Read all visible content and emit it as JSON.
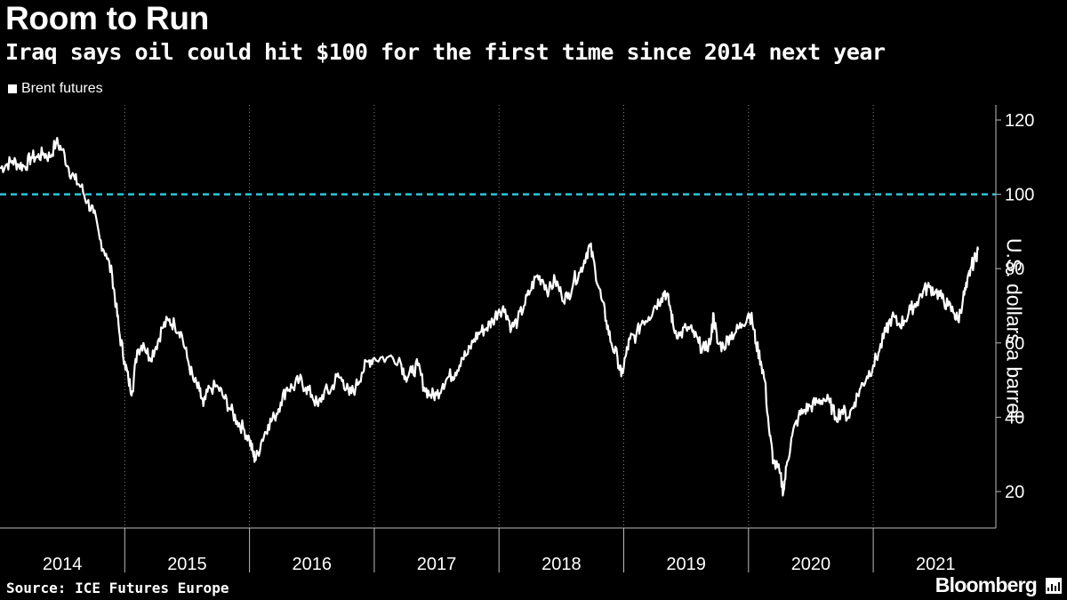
{
  "header": {
    "title": "Room to Run",
    "subtitle": "Iraq says oil could hit $100 for the first time since 2014 next year"
  },
  "legend": {
    "label": "Brent futures",
    "color": "#ffffff"
  },
  "footer": {
    "source": "Source: ICE Futures Europe",
    "brand": "Bloomberg"
  },
  "chart_data": {
    "type": "line",
    "title": "Room to Run",
    "subtitle": "Iraq says oil could hit $100 for the first time since 2014 next year",
    "xlabel": "",
    "ylabel": "U.S. dollars a barrel",
    "ylim": [
      10,
      125
    ],
    "xlim": [
      2014.0,
      2021.95
    ],
    "x_ticks": [
      "2014",
      "2015",
      "2016",
      "2017",
      "2018",
      "2019",
      "2020",
      "2021"
    ],
    "y_ticks": [
      20,
      40,
      60,
      80,
      100,
      120
    ],
    "y_axis_side": "right",
    "grid": "vertical dotted",
    "legend_position": "top-left",
    "reference_line": {
      "value": 100,
      "style": "dashed",
      "color": "#2fc6d8"
    },
    "series": [
      {
        "name": "Brent futures",
        "color": "#ffffff",
        "points": [
          [
            2014.0,
            107
          ],
          [
            2014.05,
            108
          ],
          [
            2014.1,
            109
          ],
          [
            2014.15,
            108
          ],
          [
            2014.2,
            107.5
          ],
          [
            2014.25,
            110
          ],
          [
            2014.3,
            110
          ],
          [
            2014.35,
            111
          ],
          [
            2014.4,
            110
          ],
          [
            2014.45,
            114
          ],
          [
            2014.5,
            112
          ],
          [
            2014.55,
            107
          ],
          [
            2014.6,
            104
          ],
          [
            2014.65,
            102
          ],
          [
            2014.7,
            98
          ],
          [
            2014.75,
            95
          ],
          [
            2014.8,
            88
          ],
          [
            2014.85,
            84
          ],
          [
            2014.9,
            78
          ],
          [
            2014.93,
            70
          ],
          [
            2014.96,
            62
          ],
          [
            2015.0,
            55
          ],
          [
            2015.03,
            50
          ],
          [
            2015.06,
            47
          ],
          [
            2015.1,
            58
          ],
          [
            2015.15,
            60
          ],
          [
            2015.2,
            56
          ],
          [
            2015.25,
            59
          ],
          [
            2015.3,
            64
          ],
          [
            2015.35,
            66
          ],
          [
            2015.4,
            65
          ],
          [
            2015.45,
            63
          ],
          [
            2015.5,
            56
          ],
          [
            2015.55,
            50
          ],
          [
            2015.6,
            47
          ],
          [
            2015.63,
            43
          ],
          [
            2015.68,
            48
          ],
          [
            2015.75,
            48
          ],
          [
            2015.8,
            45
          ],
          [
            2015.85,
            42
          ],
          [
            2015.9,
            39
          ],
          [
            2015.95,
            37
          ],
          [
            2016.0,
            34
          ],
          [
            2016.03,
            30
          ],
          [
            2016.05,
            28.5
          ],
          [
            2016.1,
            34
          ],
          [
            2016.15,
            38
          ],
          [
            2016.2,
            40
          ],
          [
            2016.25,
            44
          ],
          [
            2016.3,
            48
          ],
          [
            2016.35,
            48
          ],
          [
            2016.4,
            50
          ],
          [
            2016.45,
            48
          ],
          [
            2016.5,
            46
          ],
          [
            2016.55,
            43
          ],
          [
            2016.6,
            47
          ],
          [
            2016.65,
            47
          ],
          [
            2016.7,
            51
          ],
          [
            2016.75,
            50
          ],
          [
            2016.8,
            46
          ],
          [
            2016.85,
            48
          ],
          [
            2016.9,
            52
          ],
          [
            2016.95,
            55
          ],
          [
            2017.0,
            56
          ],
          [
            2017.1,
            56
          ],
          [
            2017.2,
            56
          ],
          [
            2017.25,
            51
          ],
          [
            2017.3,
            52
          ],
          [
            2017.35,
            54
          ],
          [
            2017.4,
            48
          ],
          [
            2017.45,
            46
          ],
          [
            2017.5,
            46
          ],
          [
            2017.55,
            49
          ],
          [
            2017.6,
            51
          ],
          [
            2017.65,
            52
          ],
          [
            2017.7,
            56
          ],
          [
            2017.75,
            57
          ],
          [
            2017.8,
            61
          ],
          [
            2017.85,
            63
          ],
          [
            2017.9,
            64
          ],
          [
            2017.95,
            66
          ],
          [
            2018.0,
            69
          ],
          [
            2018.05,
            69
          ],
          [
            2018.1,
            64
          ],
          [
            2018.15,
            66
          ],
          [
            2018.2,
            70
          ],
          [
            2018.25,
            74
          ],
          [
            2018.3,
            78
          ],
          [
            2018.35,
            77
          ],
          [
            2018.4,
            74
          ],
          [
            2018.45,
            77
          ],
          [
            2018.5,
            73
          ],
          [
            2018.55,
            72
          ],
          [
            2018.6,
            77
          ],
          [
            2018.65,
            79
          ],
          [
            2018.7,
            84
          ],
          [
            2018.73,
            86
          ],
          [
            2018.77,
            80
          ],
          [
            2018.82,
            72
          ],
          [
            2018.86,
            66
          ],
          [
            2018.9,
            60
          ],
          [
            2018.95,
            56
          ],
          [
            2018.98,
            51
          ],
          [
            2019.02,
            57
          ],
          [
            2019.05,
            61
          ],
          [
            2019.1,
            62
          ],
          [
            2019.15,
            66
          ],
          [
            2019.2,
            67
          ],
          [
            2019.25,
            70
          ],
          [
            2019.3,
            72
          ],
          [
            2019.33,
            74
          ],
          [
            2019.37,
            70
          ],
          [
            2019.4,
            64
          ],
          [
            2019.45,
            62
          ],
          [
            2019.5,
            64
          ],
          [
            2019.55,
            63
          ],
          [
            2019.6,
            60
          ],
          [
            2019.65,
            58
          ],
          [
            2019.7,
            61
          ],
          [
            2019.72,
            68
          ],
          [
            2019.75,
            60
          ],
          [
            2019.8,
            59
          ],
          [
            2019.85,
            62
          ],
          [
            2019.9,
            63
          ],
          [
            2019.95,
            65
          ],
          [
            2020.0,
            68
          ],
          [
            2020.03,
            66
          ],
          [
            2020.06,
            60
          ],
          [
            2020.1,
            55
          ],
          [
            2020.13,
            50
          ],
          [
            2020.17,
            35
          ],
          [
            2020.2,
            28
          ],
          [
            2020.25,
            25
          ],
          [
            2020.28,
            20
          ],
          [
            2020.31,
            28
          ],
          [
            2020.35,
            35
          ],
          [
            2020.4,
            40
          ],
          [
            2020.45,
            42
          ],
          [
            2020.5,
            43
          ],
          [
            2020.55,
            44
          ],
          [
            2020.6,
            45
          ],
          [
            2020.65,
            44
          ],
          [
            2020.7,
            40
          ],
          [
            2020.75,
            42
          ],
          [
            2020.8,
            40
          ],
          [
            2020.85,
            44
          ],
          [
            2020.9,
            48
          ],
          [
            2020.95,
            51
          ],
          [
            2021.0,
            54
          ],
          [
            2021.05,
            58
          ],
          [
            2021.1,
            63
          ],
          [
            2021.15,
            67
          ],
          [
            2021.2,
            65
          ],
          [
            2021.25,
            66
          ],
          [
            2021.3,
            69
          ],
          [
            2021.35,
            71
          ],
          [
            2021.4,
            74
          ],
          [
            2021.45,
            75
          ],
          [
            2021.5,
            74
          ],
          [
            2021.55,
            72
          ],
          [
            2021.6,
            70
          ],
          [
            2021.65,
            68
          ],
          [
            2021.68,
            66
          ],
          [
            2021.72,
            72
          ],
          [
            2021.75,
            75
          ],
          [
            2021.78,
            80
          ],
          [
            2021.82,
            83
          ],
          [
            2021.84,
            85
          ]
        ]
      }
    ]
  }
}
